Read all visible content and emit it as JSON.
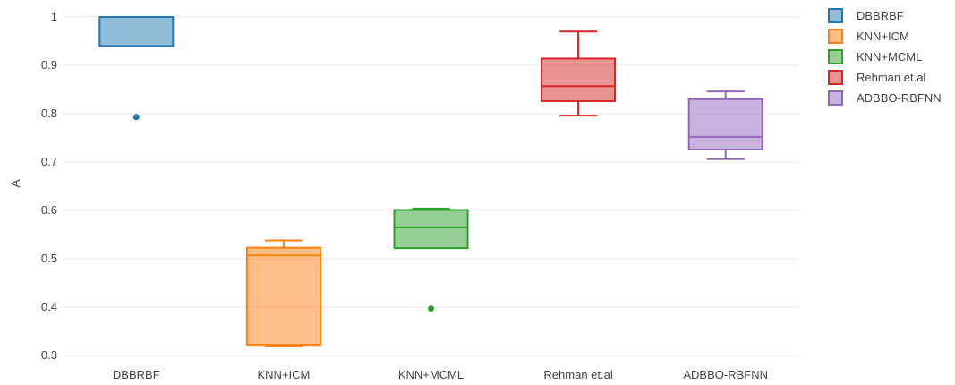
{
  "chart_data": {
    "type": "box",
    "ylabel": "A",
    "xlabel": "",
    "ylim": [
      0.3,
      1.0
    ],
    "yticks": [
      "0.3",
      "0.4",
      "0.5",
      "0.6",
      "0.7",
      "0.8",
      "0.9",
      "1"
    ],
    "grid": true,
    "legend_position": "top-right",
    "categories": [
      "DBBRBF",
      "KNN+ICM",
      "KNN+MCML",
      "Rehman et.al",
      "ADBBO-RBFNN"
    ],
    "series": [
      {
        "name": "DBBRBF",
        "color": "#1f77b4",
        "whisker_low": 0.94,
        "q1": 0.94,
        "median": 1.0,
        "q3": 1.0,
        "whisker_high": 1.0,
        "outliers": [
          0.793
        ]
      },
      {
        "name": "KNN+ICM",
        "color": "#ff7f0e",
        "whisker_low": 0.32,
        "q1": 0.322,
        "median": 0.507,
        "q3": 0.523,
        "whisker_high": 0.538,
        "outliers": []
      },
      {
        "name": "KNN+MCML",
        "color": "#2ca02c",
        "whisker_low": 0.522,
        "q1": 0.522,
        "median": 0.565,
        "q3": 0.601,
        "whisker_high": 0.604,
        "outliers": [
          0.397
        ]
      },
      {
        "name": "Rehman et.al",
        "color": "#d62728",
        "whisker_low": 0.796,
        "q1": 0.826,
        "median": 0.857,
        "q3": 0.914,
        "whisker_high": 0.97,
        "outliers": []
      },
      {
        "name": "ADBBO-RBFNN",
        "color": "#9467bd",
        "whisker_low": 0.706,
        "q1": 0.726,
        "median": 0.752,
        "q3": 0.83,
        "whisker_high": 0.846,
        "outliers": []
      }
    ]
  }
}
